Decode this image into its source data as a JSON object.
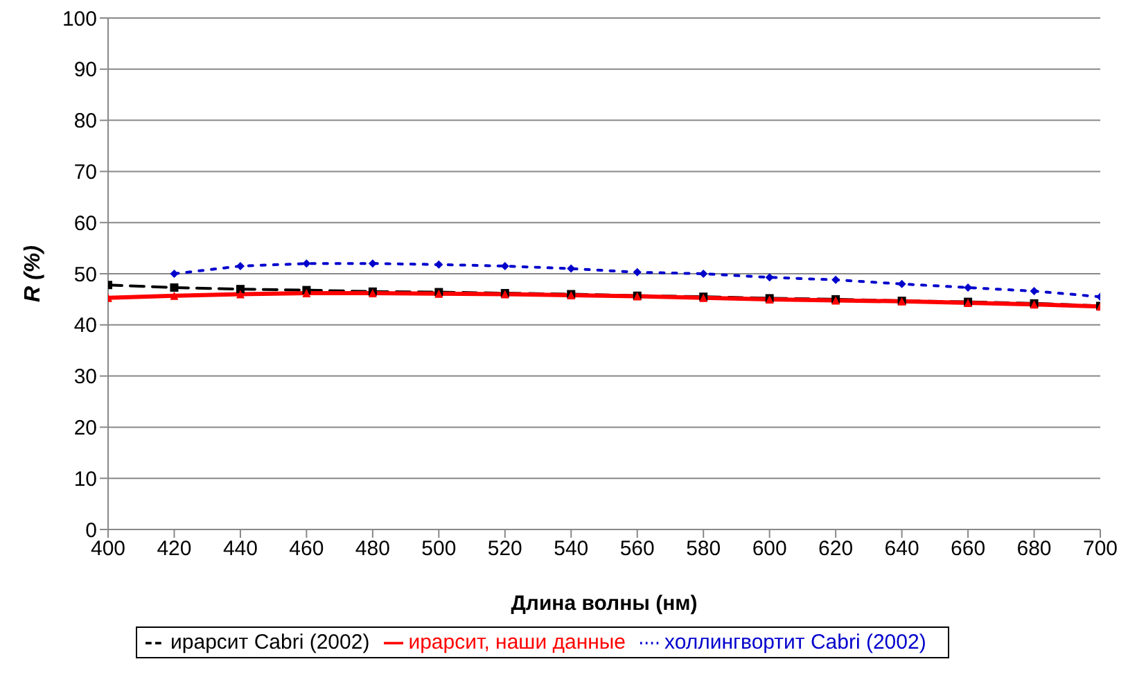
{
  "chart_data": {
    "type": "line",
    "xlabel": "Длина волны (нм)",
    "ylabel": "R  (%)",
    "x": [
      400,
      420,
      440,
      460,
      480,
      500,
      520,
      540,
      560,
      580,
      600,
      620,
      640,
      660,
      680,
      700
    ],
    "xlim": [
      400,
      700
    ],
    "xticks": [
      400,
      420,
      440,
      460,
      480,
      500,
      520,
      540,
      560,
      580,
      600,
      620,
      640,
      660,
      680,
      700
    ],
    "ylim": [
      0,
      100
    ],
    "yticks": [
      0,
      10,
      20,
      30,
      40,
      50,
      60,
      70,
      80,
      90,
      100
    ],
    "grid": "y",
    "legend": "bottom",
    "series": [
      {
        "name": "холлингвортит  Cabri (2002)",
        "color": "#0000cc",
        "line_style": "dotted",
        "marker": "diamond",
        "values": [
          null,
          50,
          51.5,
          52,
          52,
          51.8,
          51.5,
          51,
          50.3,
          50,
          49.3,
          48.8,
          48,
          47.3,
          46.6,
          45.5
        ]
      },
      {
        "name": "ирарсит  Cabri (2002)",
        "color": "#000000",
        "line_style": "dashed",
        "marker": "square",
        "values": [
          47.8,
          47.3,
          47,
          46.8,
          46.5,
          46.4,
          46.2,
          46,
          45.7,
          45.5,
          45.2,
          45,
          44.7,
          44.5,
          44.2,
          43.7
        ]
      },
      {
        "name": "ирарсит, наши данные",
        "color": "#ff0000",
        "line_style": "solid",
        "marker": "triangle",
        "values": [
          45.3,
          45.7,
          46,
          46.2,
          46.2,
          46.1,
          46,
          45.8,
          45.6,
          45.3,
          45,
          44.8,
          44.6,
          44.3,
          44,
          43.6
        ]
      }
    ]
  }
}
